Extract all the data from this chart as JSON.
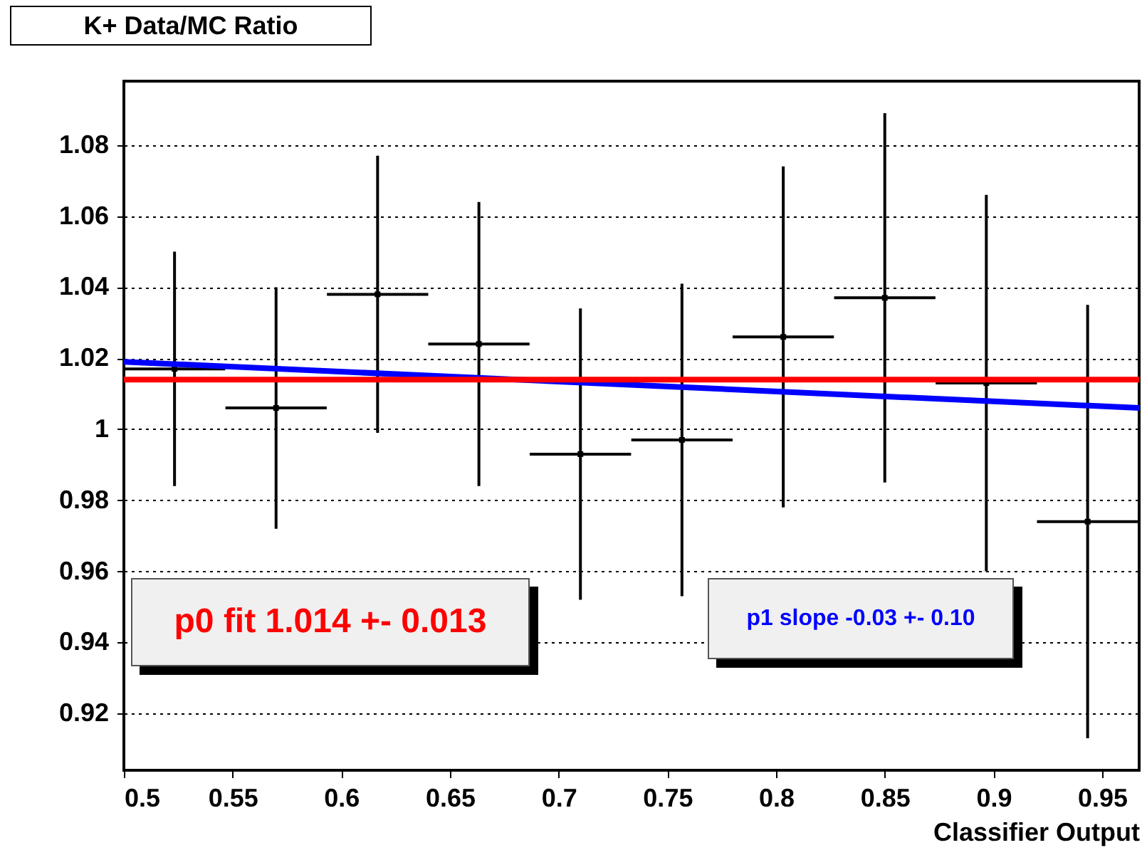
{
  "chart_data": {
    "type": "scatter",
    "title": "K+ Data/MC Ratio",
    "xlabel": "Classifier Output",
    "xlim": [
      0.5,
      0.967
    ],
    "xticks": [
      0.5,
      0.55,
      0.6,
      0.65,
      0.7,
      0.75,
      0.8,
      0.85,
      0.9,
      0.95
    ],
    "ylim": [
      0.904,
      1.098
    ],
    "yticks": [
      0.92,
      0.94,
      0.96,
      0.98,
      1,
      1.02,
      1.04,
      1.06,
      1.08
    ],
    "grid": "y",
    "legend": false,
    "series": [
      {
        "color": "#000000",
        "x": [
          0.5233,
          0.57,
          0.6167,
          0.6633,
          0.71,
          0.7567,
          0.8033,
          0.85,
          0.8967,
          0.9433
        ],
        "values": [
          1.017,
          1.006,
          1.038,
          1.024,
          0.993,
          0.997,
          1.026,
          1.037,
          1.013,
          0.974
        ],
        "errors": [
          0.033,
          0.034,
          0.039,
          0.04,
          0.041,
          0.044,
          0.048,
          0.052,
          0.053,
          0.061
        ],
        "xerrors": [
          0.0233,
          0.0233,
          0.0233,
          0.0233,
          0.0233,
          0.0233,
          0.0233,
          0.0233,
          0.0233,
          0.0233
        ]
      },
      {
        "type": "line",
        "color": "#0000ff",
        "x": [
          0.5,
          0.967
        ],
        "values": [
          1.019,
          1.006
        ]
      },
      {
        "type": "line",
        "color": "#ff0000",
        "x": [
          0.5,
          0.967
        ],
        "values": [
          1.014,
          1.014
        ]
      }
    ],
    "annotations": [
      "p0 fit 1.014 +- 0.013",
      "p1 slope -0.03 +- 0.10"
    ]
  }
}
